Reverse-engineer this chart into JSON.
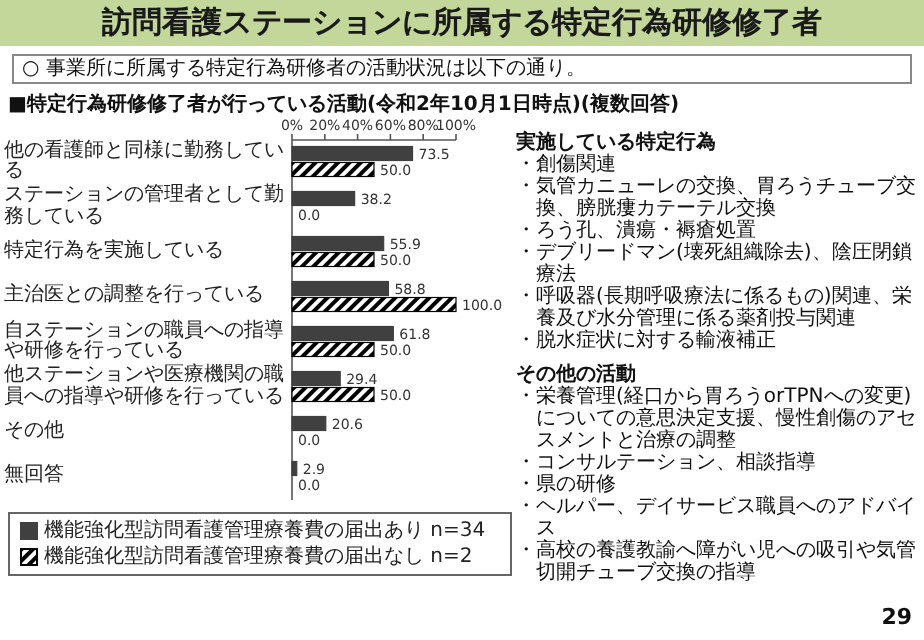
{
  "chart_data": {
    "type": "bar",
    "orientation": "horizontal",
    "title": "訪問看護ステーションに所属する特定行為研修修了者",
    "subtitle": "○ 事業所に所属する特定行為研修者の活動状況は以下の通り。",
    "categories": [
      "他の看護師と同様に勤務している",
      "ステーションの管理者として勤務している",
      "特定行為を実施している",
      "主治医との調整を行っている",
      "自ステーションの職員への指導や研修を行っている",
      "他ステーションや医療機関の職員への指導や研修を行っている",
      "その他",
      "無回答"
    ],
    "series": [
      {
        "name": "機能強化型訪問看護管理療養費の届出あり n=34",
        "color": "#404040",
        "values": [
          73.5,
          38.2,
          55.9,
          58.8,
          61.8,
          29.4,
          20.6,
          2.9
        ],
        "value_labels": [
          "73.5",
          "38.2",
          "55.9",
          "58.8",
          "61.8",
          "29.4",
          "20.6",
          "2.9"
        ]
      },
      {
        "name": "機能強化型訪問看護管理療養費の届出なし n=2",
        "color": "#000000",
        "values": [
          50,
          0,
          50,
          100,
          50,
          50,
          0,
          0
        ],
        "value_labels": [
          "50.0",
          "0.0",
          "50.0",
          "100.0",
          "50.0",
          "50.0",
          "0.0",
          "0.0"
        ]
      }
    ],
    "xlim": [
      0,
      100
    ],
    "xticks": [
      {
        "value": 0,
        "label": "0%"
      },
      {
        "value": 20,
        "label": "20%"
      },
      {
        "value": 40,
        "label": "40%"
      },
      {
        "value": 60,
        "label": "60%"
      },
      {
        "value": 80,
        "label": "80%"
      },
      {
        "value": 100,
        "label": "100%"
      }
    ],
    "legend": "bottom",
    "annotations": [
      "■特定行為研修修了者が行っている活動(令和2年10月1日時点)(複数回答)",
      "**実施している特定行為**",
      "・創傷関連",
      "・気管カニューレの交換、胃ろうチューブ交換、膀胱瘻カテーテル交換",
      "・ろう孔、潰瘍・褥瘡処置",
      "・デブリードマン(壊死組織除去)、陰圧閉鎖療法",
      "・呼吸器(長期呼吸療法に係るもの)関連、栄養及び水分管理に係る薬剤投与関連",
      "・脱水症状に対する輸液補正",
      "**その他の活動**",
      "・栄養管理(経口から胃ろうorTPNへの変更)についての意思決定支援、慢性創傷のアセスメントと治療の調整",
      "・コンサルテーション、相談指導",
      "・県の研修",
      "・ヘルパー、デイサービス職員へのアドバイス",
      "・高校の養護教諭へ障がい児への吸引や気管切開チューブ交換の指導",
      "29"
    ]
  }
}
